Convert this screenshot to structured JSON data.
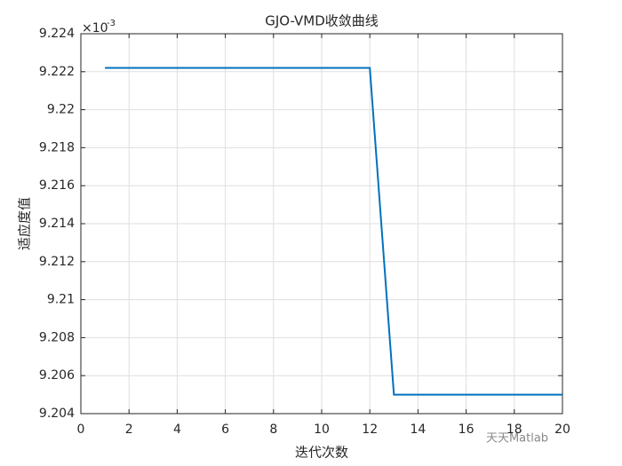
{
  "chart_data": {
    "type": "line",
    "title": "GJO-VMD收敛曲线",
    "x_label": "迭代次数",
    "y_label": "适应度值",
    "y_multiplier": {
      "base": "×10",
      "exponent": "-3"
    },
    "x": [
      1,
      2,
      3,
      4,
      5,
      6,
      7,
      8,
      9,
      10,
      11,
      12,
      13,
      14,
      15,
      16,
      17,
      18,
      19,
      20
    ],
    "series": [
      {
        "name": "GJO-VMD",
        "color": "#0072bd",
        "values": [
          9.2222,
          9.2222,
          9.2222,
          9.2222,
          9.2222,
          9.2222,
          9.2222,
          9.2222,
          9.2222,
          9.2222,
          9.2222,
          9.2222,
          9.205,
          9.205,
          9.205,
          9.205,
          9.205,
          9.205,
          9.205,
          9.205
        ]
      }
    ],
    "xlim": [
      0,
      20
    ],
    "xticks": [
      0,
      2,
      4,
      6,
      8,
      10,
      12,
      14,
      16,
      18,
      20
    ],
    "ylim": [
      9.204,
      9.224
    ],
    "yticks": [
      9.204,
      9.206,
      9.208,
      9.21,
      9.212,
      9.214,
      9.216,
      9.218,
      9.22,
      9.222,
      9.224
    ],
    "grid": true,
    "watermark": "天天Matlab"
  }
}
